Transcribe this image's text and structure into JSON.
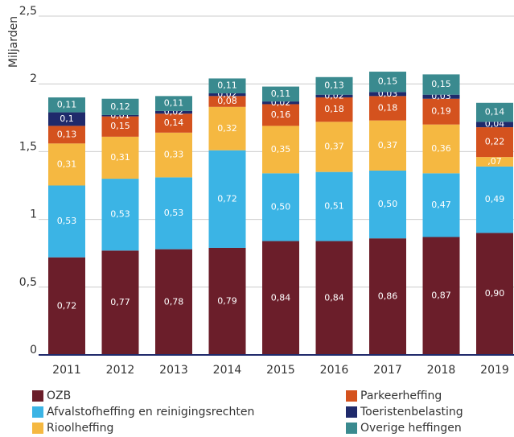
{
  "chart_data": {
    "type": "stacked_bar",
    "y_label": "Miljarden",
    "categories": [
      "2011",
      "2012",
      "2013",
      "2014",
      "2015",
      "2016",
      "2017",
      "2018",
      "2019"
    ],
    "ylim": [
      0,
      2.5
    ],
    "yticks": [
      0,
      {
        "value": 0.5,
        "label": "0,5"
      },
      1,
      {
        "value": 1.5,
        "label": "1,5"
      },
      2,
      {
        "value": 2.5,
        "label": "2,5"
      }
    ],
    "grid": true,
    "series": [
      {
        "name": "OZB",
        "color": "#6b1e2a",
        "values": [
          0.72,
          0.77,
          0.78,
          0.79,
          0.84,
          0.84,
          0.86,
          0.87,
          0.9
        ],
        "value_labels": [
          "0,72",
          "0,77",
          "0,78",
          "0,79",
          "0,84",
          "0,84",
          "0,86",
          "0,87",
          "0,90"
        ]
      },
      {
        "name": "Afvalstofheffing en reinigingsrechten",
        "color": "#3bb4e5",
        "values": [
          0.53,
          0.53,
          0.53,
          0.72,
          0.5,
          0.51,
          0.5,
          0.47,
          0.49
        ],
        "value_labels": [
          "0,53",
          "0,53",
          "0,53",
          "0,72",
          "0,50",
          "0,51",
          "0,50",
          "0,47",
          "0,49"
        ]
      },
      {
        "name": "Rioolheffing",
        "color": "#f5b841",
        "values": [
          0.31,
          0.31,
          0.33,
          0.32,
          0.35,
          0.37,
          0.37,
          0.36,
          0.07
        ],
        "value_labels": [
          "0,31",
          "0,31",
          "0,33",
          "0,32",
          "0,35",
          "0,37",
          "0,37",
          "0,36",
          ",07"
        ]
      },
      {
        "name": "Parkeerheffing",
        "color": "#d4521e",
        "values": [
          0.13,
          0.15,
          0.14,
          0.08,
          0.16,
          0.18,
          0.18,
          0.19,
          0.22
        ],
        "value_labels": [
          "0,13",
          "0,15",
          "0,14",
          "0,08",
          "0,16",
          "0,18",
          "0,18",
          "0,19",
          "0,22"
        ]
      },
      {
        "name": "Toeristenbelasting",
        "color": "#1f2a6b",
        "values": [
          0.1,
          0.01,
          0.02,
          0.02,
          0.02,
          0.02,
          0.03,
          0.03,
          0.04
        ],
        "value_labels": [
          "0,1",
          "0,01",
          "0,02",
          "0,02",
          "0,02",
          "0,02",
          "0,03",
          "0,03",
          "0,04"
        ]
      },
      {
        "name": "Overige heffingen",
        "color": "#3a8a8f",
        "values": [
          0.11,
          0.12,
          0.11,
          0.11,
          0.11,
          0.13,
          0.15,
          0.15,
          0.14
        ],
        "value_labels": [
          "0,11",
          "0,12",
          "0,11",
          "0,11",
          "0,11",
          "0,13",
          "0,15",
          "0,15",
          "0,14"
        ]
      }
    ]
  }
}
